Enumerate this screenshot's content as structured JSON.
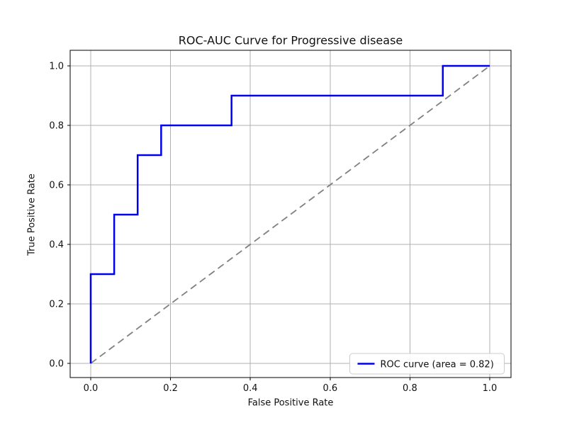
{
  "chart_data": {
    "type": "line",
    "title": "ROC-AUC Curve for Progressive disease",
    "xlabel": "False Positive Rate",
    "ylabel": "True Positive Rate",
    "xlim": [
      -0.05,
      1.05
    ],
    "ylim": [
      -0.05,
      1.05
    ],
    "grid": true,
    "x_ticks": {
      "values": [
        0.0,
        0.2,
        0.4,
        0.6,
        0.8,
        1.0
      ],
      "labels": [
        "0.0",
        "0.2",
        "0.4",
        "0.6",
        "0.8",
        "1.0"
      ]
    },
    "y_ticks": {
      "values": [
        0.0,
        0.2,
        0.4,
        0.6,
        0.8,
        1.0
      ],
      "labels": [
        "0.0",
        "0.2",
        "0.4",
        "0.6",
        "0.8",
        "1.0"
      ]
    },
    "series": [
      {
        "name": "roc-curve",
        "color": "#0000ee",
        "style": "solid",
        "width": 2.5,
        "x": [
          0.0,
          0.0,
          0.0588,
          0.0588,
          0.1176,
          0.1176,
          0.1765,
          0.1765,
          0.3529,
          0.3529,
          0.8824,
          0.8824,
          1.0
        ],
        "y": [
          0.0,
          0.3,
          0.3,
          0.5,
          0.5,
          0.7,
          0.7,
          0.8,
          0.8,
          0.9,
          0.9,
          1.0,
          1.0
        ]
      },
      {
        "name": "chance-diagonal",
        "color": "#808080",
        "style": "dashed",
        "width": 1.8,
        "x": [
          0.0,
          1.0
        ],
        "y": [
          0.0,
          1.0
        ]
      }
    ],
    "auc": 0.82,
    "legend": {
      "position": "lower right",
      "entries": [
        {
          "label": "ROC curve (area = 0.82)",
          "color": "#0000ee"
        }
      ]
    },
    "colors": {
      "background": "#ffffff",
      "spine": "#000000",
      "grid": "#b0b0b0",
      "tick": "#000000",
      "legend_border": "#cccccc",
      "legend_fill": "#ffffff"
    }
  }
}
